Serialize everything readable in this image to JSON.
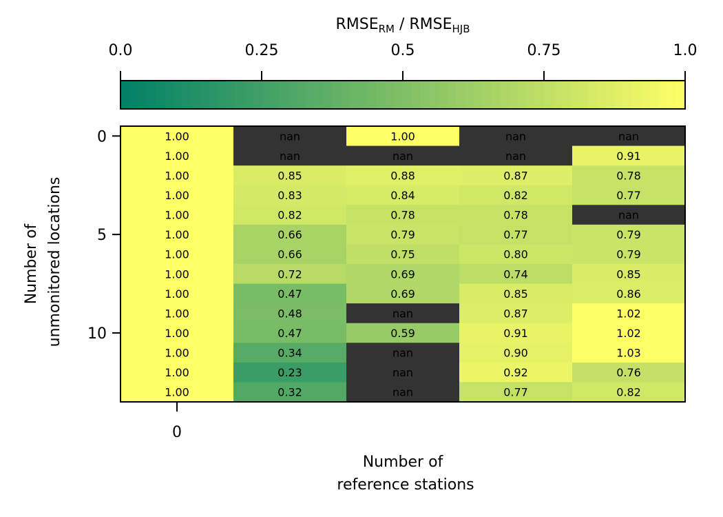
{
  "chart_data": {
    "type": "heatmap",
    "colorbar": {
      "title_main": "RMSE",
      "title_sub_1": "RM",
      "title_sep": " / RMSE",
      "title_sub_2": "HJB",
      "range": [
        0.0,
        1.0
      ],
      "ticks": [
        0.0,
        0.25,
        0.5,
        0.75,
        1.0
      ],
      "tick_labels": [
        "0.0",
        "0.25",
        "0.5",
        "0.75",
        "1.0"
      ],
      "colormap": "summer",
      "colors": [
        "#008066",
        "#ffff66"
      ],
      "nan_color": "#333333",
      "placement": "top"
    },
    "xlabel_line1": "Number of",
    "xlabel_line2": "reference stations",
    "ylabel_line1": "Number of",
    "ylabel_line2": "unmonitored locations",
    "x_ticks": [
      0
    ],
    "x_tick_labels": [
      "0"
    ],
    "y_ticks": [
      0,
      5,
      10
    ],
    "y_tick_labels": [
      "0",
      "5",
      "10"
    ],
    "n_rows": 14,
    "n_cols": 5,
    "values": [
      [
        1.0,
        null,
        1.0,
        null,
        null
      ],
      [
        1.0,
        null,
        null,
        null,
        0.91
      ],
      [
        1.0,
        0.85,
        0.88,
        0.87,
        0.78
      ],
      [
        1.0,
        0.83,
        0.84,
        0.82,
        0.77
      ],
      [
        1.0,
        0.82,
        0.78,
        0.78,
        null
      ],
      [
        1.0,
        0.66,
        0.79,
        0.77,
        0.79
      ],
      [
        1.0,
        0.66,
        0.75,
        0.8,
        0.79
      ],
      [
        1.0,
        0.72,
        0.69,
        0.74,
        0.85
      ],
      [
        1.0,
        0.47,
        0.69,
        0.85,
        0.86
      ],
      [
        1.0,
        0.48,
        null,
        0.87,
        1.02
      ],
      [
        1.0,
        0.47,
        0.59,
        0.91,
        1.02
      ],
      [
        1.0,
        0.34,
        null,
        0.9,
        1.03
      ],
      [
        1.0,
        0.23,
        null,
        0.92,
        0.76
      ],
      [
        1.0,
        0.32,
        null,
        0.77,
        0.82
      ]
    ],
    "cell_labels": [
      [
        "1.00",
        "nan",
        "1.00",
        "nan",
        "nan"
      ],
      [
        "1.00",
        "nan",
        "nan",
        "nan",
        "0.91"
      ],
      [
        "1.00",
        "0.85",
        "0.88",
        "0.87",
        "0.78"
      ],
      [
        "1.00",
        "0.83",
        "0.84",
        "0.82",
        "0.77"
      ],
      [
        "1.00",
        "0.82",
        "0.78",
        "0.78",
        "nan"
      ],
      [
        "1.00",
        "0.66",
        "0.79",
        "0.77",
        "0.79"
      ],
      [
        "1.00",
        "0.66",
        "0.75",
        "0.80",
        "0.79"
      ],
      [
        "1.00",
        "0.72",
        "0.69",
        "0.74",
        "0.85"
      ],
      [
        "1.00",
        "0.47",
        "0.69",
        "0.85",
        "0.86"
      ],
      [
        "1.00",
        "0.48",
        "nan",
        "0.87",
        "1.02"
      ],
      [
        "1.00",
        "0.47",
        "0.59",
        "0.91",
        "1.02"
      ],
      [
        "1.00",
        "0.34",
        "nan",
        "0.90",
        "1.03"
      ],
      [
        "1.00",
        "0.23",
        "nan",
        "0.92",
        "0.76"
      ],
      [
        "1.00",
        "0.32",
        "nan",
        "0.77",
        "0.82"
      ]
    ]
  }
}
